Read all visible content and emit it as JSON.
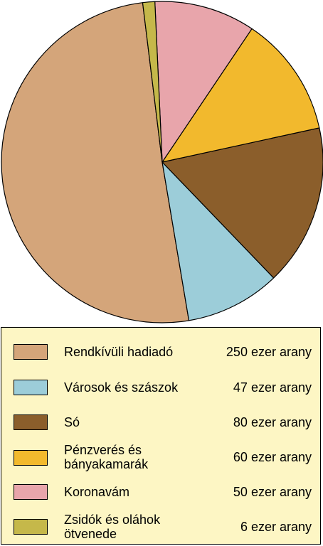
{
  "chart_data": {
    "type": "pie",
    "start_angle_deg": -7,
    "direction": "counter-clockwise",
    "slices": [
      {
        "label": "Rendkívüli hadiadó",
        "value": 250,
        "value_label": "250 ezer arany",
        "color": "#d4a57a"
      },
      {
        "label": "Városok és szászok",
        "value": 47,
        "value_label": "47 ezer arany",
        "color": "#9ccdd9"
      },
      {
        "label": "Só",
        "value": 80,
        "value_label": "80 ezer arany",
        "color": "#8b5e2b"
      },
      {
        "label": "Pénzverés és bányakamarák",
        "label_lines": [
          "Pénzverés és",
          "bányakamarák"
        ],
        "value": 60,
        "value_label": "60 ezer arany",
        "color": "#f2b92d"
      },
      {
        "label": "Koronavám",
        "value": 50,
        "value_label": "50 ezer arany",
        "color": "#e8a5ab"
      },
      {
        "label": "Zsidók és oláhok ötvenede",
        "label_lines": [
          "Zsidók és oláhok",
          "ötvenede"
        ],
        "value": 6,
        "value_label": "6 ezer arany",
        "color": "#c5b84a"
      }
    ],
    "legend_position": "bottom"
  },
  "legend_background": "#fdf6c4"
}
